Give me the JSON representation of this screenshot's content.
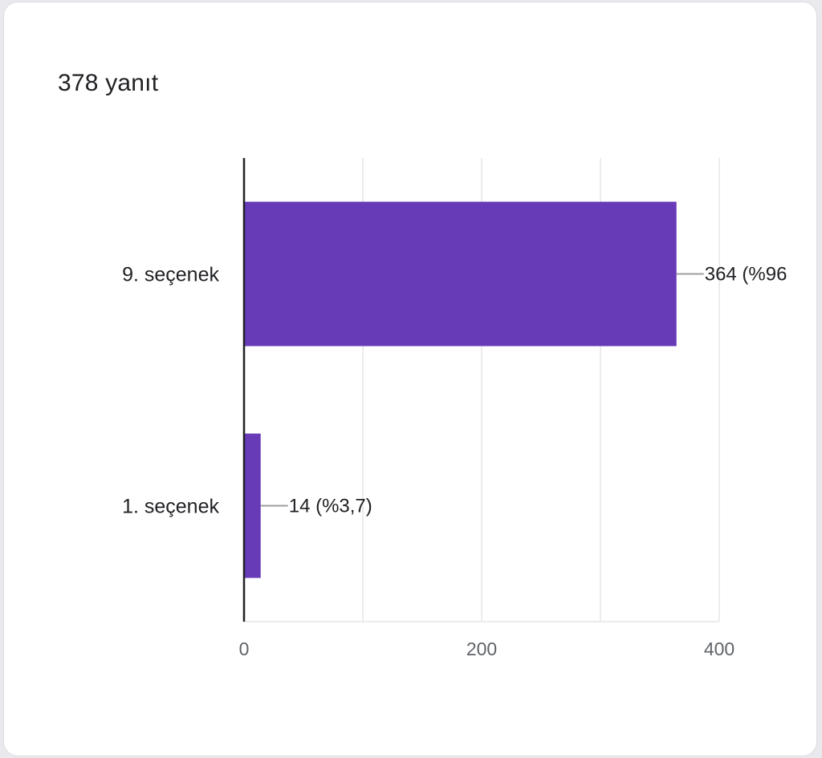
{
  "summary": {
    "response_count": "378 yanıt"
  },
  "colors": {
    "bar": "#673ab7",
    "grid": "#ececec",
    "axis": "#202124",
    "leader": "#9e9e9e"
  },
  "chart_data": {
    "type": "bar",
    "orientation": "horizontal",
    "categories": [
      "9. seçenek",
      "1. seçenek"
    ],
    "values": [
      364,
      14
    ],
    "data_labels": [
      "364 (%96",
      "14 (%3,7)"
    ],
    "xlim": [
      0,
      400
    ],
    "x_ticks": [
      0,
      200,
      400
    ],
    "grid": true,
    "legend": "none"
  }
}
